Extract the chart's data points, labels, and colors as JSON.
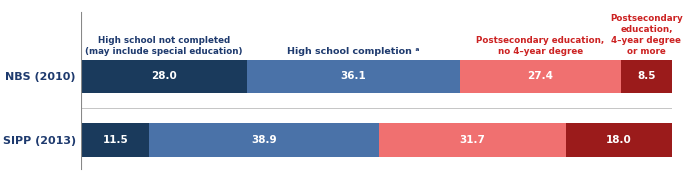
{
  "categories": [
    "SIPP (2013)",
    "NBS (2010)"
  ],
  "segments": [
    {
      "label": "High school not completed\n(may include special education)",
      "values": [
        11.5,
        28.0
      ],
      "color": "#1a3a5c"
    },
    {
      "label": "High school completion ᵃ",
      "values": [
        38.9,
        36.1
      ],
      "color": "#4a72a8"
    },
    {
      "label": "Postsecondary education,\nno 4–year degree",
      "values": [
        31.7,
        27.4
      ],
      "color": "#f07070"
    },
    {
      "label": "Postsecondary\neducation,\n4–year degree\nor more",
      "values": [
        18.0,
        8.5
      ],
      "color": "#9b1b1b"
    }
  ],
  "label_colors": [
    "#1e3a6e",
    "#1e3a6e",
    "#cc2222",
    "#cc2222"
  ],
  "bar_height": 0.52,
  "text_color_inside": "#ffffff",
  "background_color": "#ffffff",
  "y_label_color": "#1e3a6e",
  "header_texts": [
    "High school not completed\n(may include special education)",
    "High school completion ᵃ",
    "Postsecondary education,\nno 4–year degree",
    "Postsecondary\neducation,\n4–year degree\nor more"
  ],
  "header_colors": [
    "#1e3a6e",
    "#1e3a6e",
    "#cc2222",
    "#cc2222"
  ],
  "header_fontsizes": [
    6.3,
    6.8,
    6.3,
    6.3
  ]
}
